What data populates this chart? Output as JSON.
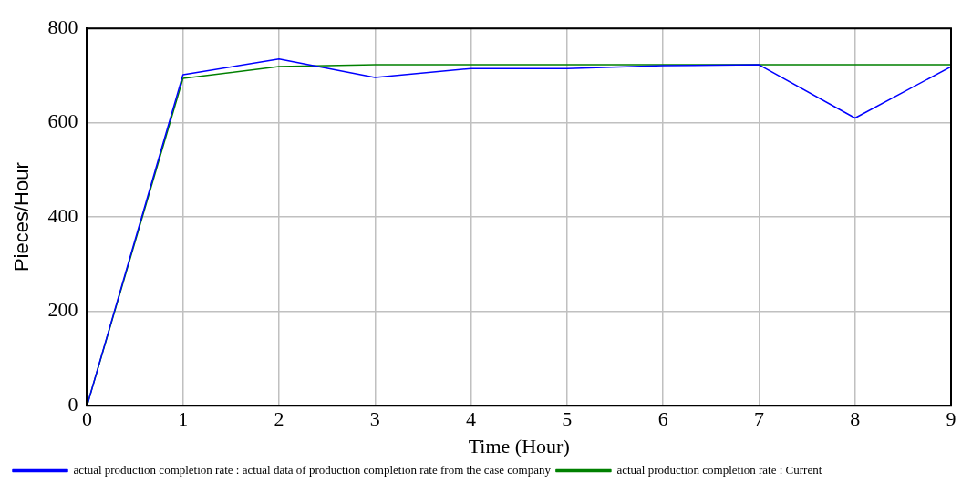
{
  "chart_data": {
    "type": "line",
    "xlabel": "Time (Hour)",
    "ylabel": "Pieces/Hour",
    "x": [
      0,
      1,
      2,
      3,
      4,
      5,
      6,
      7,
      8,
      9
    ],
    "series": [
      {
        "name": "actual production completion rate : actual data of production completion rate from the case company",
        "color": "#0000ff",
        "values": [
          0,
          702,
          735,
          696,
          715,
          715,
          721,
          723,
          610,
          719
        ]
      },
      {
        "name": "actual production completion rate : Current",
        "color": "#008000",
        "values": [
          0,
          694,
          719,
          723,
          723,
          723,
          723,
          723,
          723,
          723
        ]
      }
    ],
    "xlim": [
      0,
      9
    ],
    "xticks": [
      0,
      1,
      2,
      3,
      4,
      5,
      6,
      7,
      8,
      9
    ],
    "ylim": [
      0,
      800
    ],
    "yticks": [
      0,
      200,
      400,
      600,
      800
    ],
    "grid": true,
    "legend": "bottom",
    "marker": "none",
    "line_style": "solid"
  }
}
